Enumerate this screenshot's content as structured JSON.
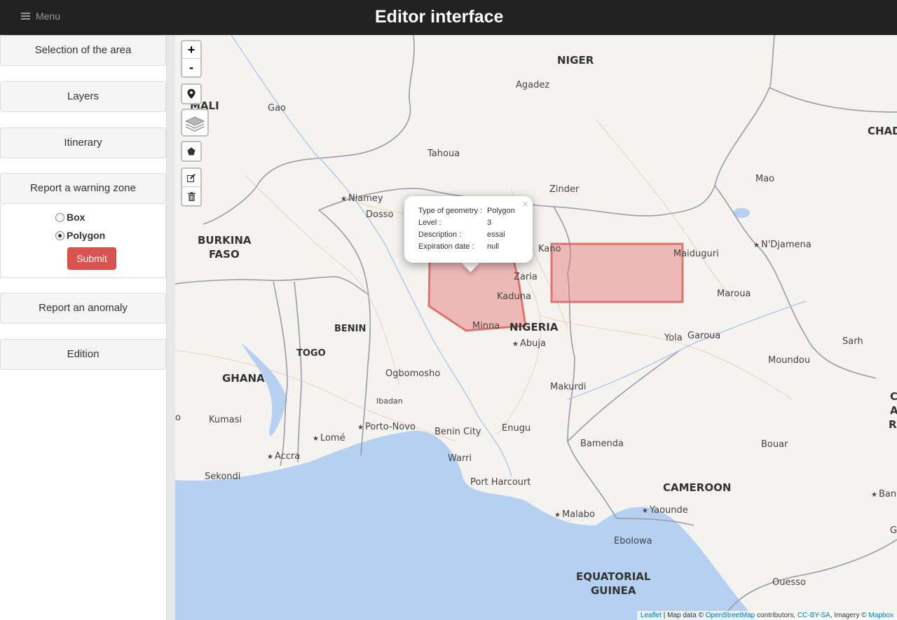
{
  "header": {
    "menu_label": "Menu",
    "title": "Editor interface"
  },
  "sidebar": {
    "sections": [
      {
        "label": "Selection of the area"
      },
      {
        "label": "Layers"
      },
      {
        "label": "Itinerary"
      },
      {
        "label": "Report a warning zone"
      },
      {
        "label": "Report an anomaly"
      },
      {
        "label": "Edition"
      }
    ],
    "warning_zone": {
      "options": [
        {
          "label": "Box",
          "checked": false
        },
        {
          "label": "Polygon",
          "checked": true
        }
      ],
      "submit_label": "Submit"
    }
  },
  "map": {
    "controls": {
      "zoom_in": "+",
      "zoom_out": "-"
    },
    "labels": {
      "niger": "NIGER",
      "mali": "MALI",
      "chad": "CHAD",
      "burkina_1": "BURKINA",
      "burkina_2": "FASO",
      "benin": "BENIN",
      "togo": "TOGO",
      "ghana": "GHANA",
      "nigeria": "NIGERIA",
      "cameroon": "CAMEROON",
      "eq_guinea_1": "EQUATORIAL",
      "eq_guinea_2": "GUINEA",
      "agadez": "Agadez",
      "gao": "Gao",
      "tahoua": "Tahoua",
      "zinder": "Zinder",
      "mao": "Mao",
      "niamey": "Niamey",
      "dosso": "Dosso",
      "kano": "Kano",
      "maiduguri": "Maiduguri",
      "ndjamena": "N'Djamena",
      "zaria": "Zaria",
      "kaduna": "Kaduna",
      "maroua": "Maroua",
      "minna": "Minna",
      "abuja": "Abuja",
      "yola": "Yola",
      "garoua": "Garoua",
      "sarh": "Sarh",
      "moundou": "Moundou",
      "ogbomosho": "Ogbomosho",
      "ibadan": "Ibadan",
      "makurdi": "Makurdi",
      "kumasi": "Kumasi",
      "porto_novo": "Porto-Novo",
      "lome": "Lomé",
      "benin_city": "Benin City",
      "enugu": "Enugu",
      "accra": "Accra",
      "warri": "Warri",
      "bamenda": "Bamenda",
      "bouar": "Bouar",
      "sekondi": "Sekondi",
      "port_harcourt": "Port Harcourt",
      "yaounde": "Yaounde",
      "malabo": "Malabo",
      "ebolowa": "Ebolowa",
      "ouesso": "Ouesso",
      "bangui_partial": "Bang",
      "edge_o": "o",
      "edge_g": "G",
      "edge_c": "C",
      "edge_a": "A",
      "edge_r": "R"
    },
    "popup": {
      "rows": [
        {
          "key": "Type of geometry :",
          "value": "Polygon"
        },
        {
          "key": "Level :",
          "value": "3"
        },
        {
          "key": "Description :",
          "value": "essai"
        },
        {
          "key": "Expiration date :",
          "value": "null"
        }
      ],
      "close": "×"
    },
    "attribution": {
      "leaflet": "Leaflet",
      "sep1": " | Map data © ",
      "osm": "OpenStreetMap",
      "sep2": " contributors, ",
      "license": "CC-BY-SA",
      "sep3": ", Imagery © ",
      "mapbox": "Mapbox"
    },
    "colors": {
      "zone_fill": "#e57373",
      "zone_stroke": "#d9534f",
      "water": "#b5d0f0"
    }
  }
}
